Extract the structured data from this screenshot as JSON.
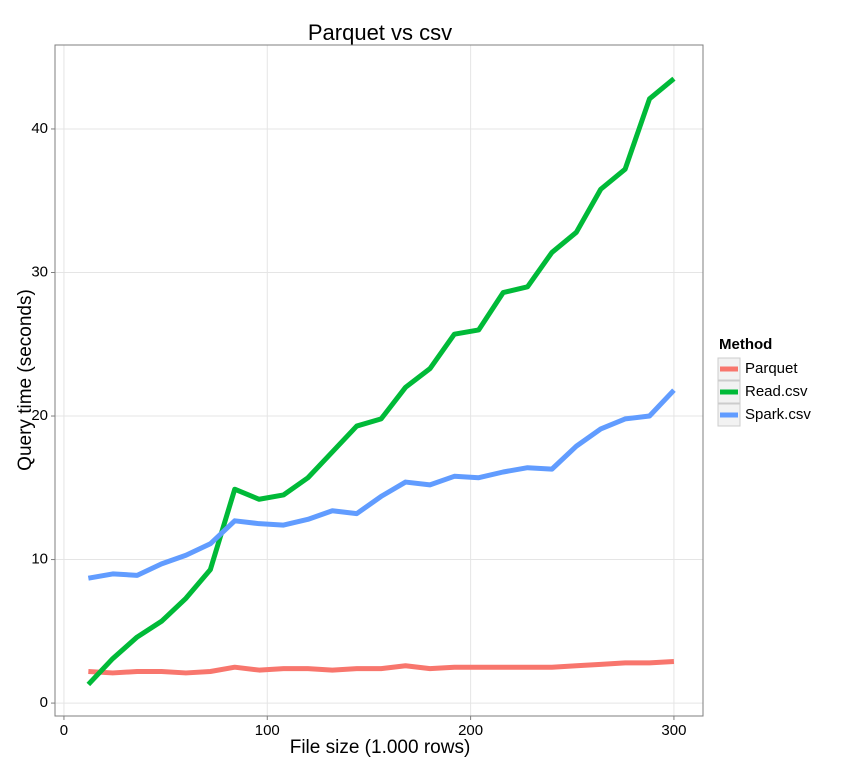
{
  "chart_data": {
    "type": "line",
    "title": "Parquet vs csv",
    "x_label": "File size (1.000 rows)",
    "y_label": "Query time (seconds)",
    "legend_title": "Method",
    "legend": "right",
    "grid": true,
    "x": [
      12,
      24,
      36,
      48,
      60,
      72,
      84,
      96,
      108,
      120,
      132,
      144,
      156,
      168,
      180,
      192,
      204,
      216,
      228,
      240,
      252,
      264,
      276,
      288,
      300
    ],
    "series": [
      {
        "name": "Parquet",
        "color": "#F8766D",
        "values": [
          2.2,
          2.1,
          2.2,
          2.2,
          2.1,
          2.2,
          2.5,
          2.3,
          2.4,
          2.4,
          2.3,
          2.4,
          2.4,
          2.6,
          2.4,
          2.5,
          2.5,
          2.5,
          2.5,
          2.5,
          2.6,
          2.7,
          2.8,
          2.8,
          2.9
        ]
      },
      {
        "name": "Read.csv",
        "color": "#00BA38",
        "values": [
          1.3,
          3.1,
          4.6,
          5.7,
          7.3,
          9.3,
          14.9,
          14.2,
          14.5,
          15.7,
          17.5,
          19.3,
          19.8,
          22.0,
          23.3,
          25.7,
          26.0,
          28.6,
          29.0,
          31.4,
          32.8,
          35.8,
          37.2,
          42.1,
          43.5
        ]
      },
      {
        "name": "Spark.csv",
        "color": "#619CFF",
        "values": [
          8.7,
          9.0,
          8.9,
          9.7,
          10.3,
          11.1,
          12.7,
          12.5,
          12.4,
          12.8,
          13.4,
          13.2,
          14.4,
          15.4,
          15.2,
          15.8,
          15.7,
          16.1,
          16.4,
          16.3,
          17.9,
          19.1,
          19.8,
          20.0,
          21.8
        ]
      }
    ],
    "xlim": [
      -4.4,
      314.3
    ],
    "ylim": [
      -0.9,
      45.85
    ],
    "xticks": [
      0,
      100,
      200,
      300
    ],
    "yticks": [
      0,
      10,
      20,
      30,
      40
    ]
  }
}
